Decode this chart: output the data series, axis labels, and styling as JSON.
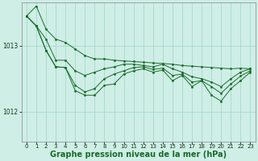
{
  "background_color": "#ceeee6",
  "plot_bg_color": "#ceeee6",
  "grid_color": "#aad8cc",
  "line_color": "#1a6b2a",
  "marker_color": "#1a6b2a",
  "title": "Graphe pression niveau de la mer (hPa)",
  "title_fontsize": 7,
  "yticks": [
    1012,
    1013
  ],
  "ylim": [
    1011.55,
    1013.65
  ],
  "xlim": [
    -0.5,
    23.5
  ],
  "xticks": [
    0,
    1,
    2,
    3,
    4,
    5,
    6,
    7,
    8,
    9,
    10,
    11,
    12,
    13,
    14,
    15,
    16,
    17,
    18,
    19,
    20,
    21,
    22,
    23
  ],
  "series": [
    [
      1013.45,
      1013.6,
      1013.25,
      1013.1,
      1013.05,
      1012.95,
      1012.85,
      1012.8,
      1012.8,
      1012.78,
      1012.77,
      1012.76,
      1012.75,
      1012.74,
      1012.73,
      1012.72,
      1012.7,
      1012.69,
      1012.68,
      1012.67,
      1012.66,
      1012.65,
      1012.66,
      1012.65
    ],
    [
      1013.45,
      1013.3,
      1013.1,
      1012.78,
      1012.78,
      1012.62,
      1012.55,
      1012.6,
      1012.65,
      1012.68,
      1012.72,
      1012.72,
      1012.7,
      1012.68,
      1012.72,
      1012.65,
      1012.6,
      1012.53,
      1012.5,
      1012.45,
      1012.38,
      1012.5,
      1012.6,
      1012.65
    ],
    [
      1013.45,
      1013.3,
      1012.93,
      1012.68,
      1012.67,
      1012.4,
      1012.3,
      1012.35,
      1012.5,
      1012.57,
      1012.62,
      1012.67,
      1012.68,
      1012.64,
      1012.66,
      1012.55,
      1012.57,
      1012.45,
      1012.47,
      1012.38,
      1012.28,
      1012.42,
      1012.54,
      1012.62
    ],
    [
      1013.45,
      1013.3,
      1012.93,
      1012.68,
      1012.67,
      1012.32,
      1012.25,
      1012.25,
      1012.4,
      1012.42,
      1012.57,
      1012.62,
      1012.65,
      1012.6,
      1012.63,
      1012.47,
      1012.55,
      1012.38,
      1012.47,
      1012.25,
      1012.16,
      1012.35,
      1012.47,
      1012.6
    ]
  ]
}
